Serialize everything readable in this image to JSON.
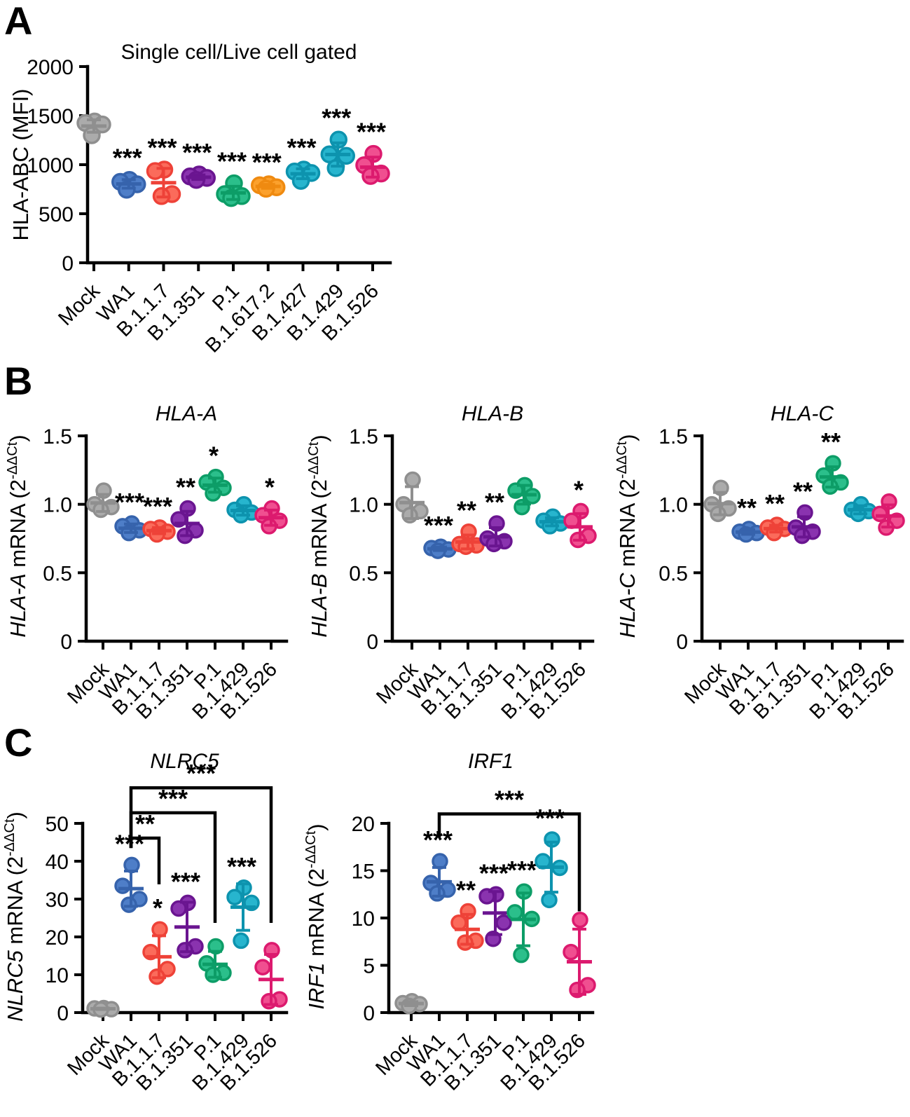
{
  "panels": [
    {
      "letter": "A"
    },
    {
      "letter": "B"
    },
    {
      "letter": "C"
    }
  ],
  "colors": {
    "Mock": {
      "fill": "#ABABAB",
      "stroke": "#8F8F8F"
    },
    "WA1": {
      "fill": "#4E7EC8",
      "stroke": "#3663AC"
    },
    "B.1.1.7": {
      "fill": "#FB6B5B",
      "stroke": "#EE4238"
    },
    "B.1.351": {
      "fill": "#8A33AF",
      "stroke": "#6A1590"
    },
    "P.1": {
      "fill": "#2BBF8B",
      "stroke": "#0D9D67"
    },
    "B.1.617.2": {
      "fill": "#FCA12D",
      "stroke": "#EF8A10"
    },
    "B.1.427": {
      "fill": "#27B5CE",
      "stroke": "#0D93AE"
    },
    "B.1.429": {
      "fill": "#27B5CE",
      "stroke": "#0D93AE"
    },
    "B.1.526": {
      "fill": "#F04F90",
      "stroke": "#DC1A6E"
    }
  },
  "chart_data": [
    {
      "id": "hla-abc",
      "panel": "A",
      "type": "scatter",
      "title": "Single cell/Live cell gated",
      "title_italic": false,
      "ylabel": {
        "italic": "",
        "plain": "HLA-ABC (MFI)",
        "sup": "",
        "close": ""
      },
      "ylim": [
        0,
        2000
      ],
      "yticks": [
        0,
        500,
        1000,
        1500,
        2000
      ],
      "ytick_labels": [
        "0",
        "500",
        "1000",
        "1500",
        "2000"
      ],
      "categories": [
        "Mock",
        "WA1",
        "B.1.1.7",
        "B.1.351",
        "P.1",
        "B.1.617.2",
        "B.1.427",
        "B.1.429",
        "B.1.526"
      ],
      "groups": [
        {
          "name": "Mock",
          "sig": "",
          "values": [
            1440,
            1425,
            1410,
            1300
          ]
        },
        {
          "name": "WA1",
          "sig": "***",
          "values": [
            845,
            825,
            800,
            745
          ]
        },
        {
          "name": "B.1.1.7",
          "sig": "***",
          "values": [
            950,
            935,
            700,
            680
          ]
        },
        {
          "name": "B.1.351",
          "sig": "***",
          "values": [
            900,
            880,
            865,
            845
          ]
        },
        {
          "name": "P.1",
          "sig": "***",
          "values": [
            810,
            700,
            680,
            660
          ]
        },
        {
          "name": "B.1.617.2",
          "sig": "***",
          "values": [
            800,
            790,
            770,
            755
          ]
        },
        {
          "name": "B.1.427",
          "sig": "***",
          "values": [
            950,
            930,
            915,
            835
          ]
        },
        {
          "name": "B.1.429",
          "sig": "***",
          "values": [
            1255,
            1105,
            1090,
            965
          ]
        },
        {
          "name": "B.1.526",
          "sig": "***",
          "values": [
            1110,
            995,
            910,
            885
          ]
        }
      ],
      "brackets": []
    },
    {
      "id": "hla-a",
      "panel": "B",
      "type": "scatter",
      "title": "HLA-A",
      "title_italic": true,
      "ylabel": {
        "italic": "HLA-A",
        "plain": " mRNA (2",
        "sup": "-ΔΔCt",
        "close": ")"
      },
      "ylim": [
        0,
        1.5
      ],
      "yticks": [
        0,
        0.5,
        1.0,
        1.5
      ],
      "ytick_labels": [
        "0",
        "0.5",
        "1.0",
        "1.5"
      ],
      "categories": [
        "Mock",
        "WA1",
        "B.1.1.7",
        "B.1.351",
        "P.1",
        "B.1.429",
        "B.1.526"
      ],
      "groups": [
        {
          "name": "Mock",
          "sig": "",
          "values": [
            1.1,
            1.0,
            0.98,
            0.96
          ]
        },
        {
          "name": "WA1",
          "sig": "***",
          "values": [
            0.86,
            0.84,
            0.81,
            0.79
          ]
        },
        {
          "name": "B.1.1.7",
          "sig": "***",
          "values": [
            0.83,
            0.82,
            0.8,
            0.78
          ]
        },
        {
          "name": "B.1.351",
          "sig": "**",
          "values": [
            0.97,
            0.89,
            0.81,
            0.77
          ]
        },
        {
          "name": "P.1",
          "sig": "*",
          "values": [
            1.2,
            1.16,
            1.12,
            1.08
          ]
        },
        {
          "name": "B.1.429",
          "sig": "",
          "values": [
            1.0,
            0.96,
            0.94,
            0.92
          ]
        },
        {
          "name": "B.1.526",
          "sig": "*",
          "values": [
            0.97,
            0.92,
            0.88,
            0.84
          ]
        }
      ],
      "brackets": []
    },
    {
      "id": "hla-b",
      "panel": "B",
      "type": "scatter",
      "title": "HLA-B",
      "title_italic": true,
      "ylabel": {
        "italic": "HLA-B",
        "plain": " mRNA (2",
        "sup": "-ΔΔCt",
        "close": ")"
      },
      "ylim": [
        0,
        1.5
      ],
      "yticks": [
        0,
        0.5,
        1.0,
        1.5
      ],
      "ytick_labels": [
        "0",
        "0.5",
        "1.0",
        "1.5"
      ],
      "categories": [
        "Mock",
        "WA1",
        "B.1.1.7",
        "B.1.351",
        "P.1",
        "B.1.429",
        "B.1.526"
      ],
      "groups": [
        {
          "name": "Mock",
          "sig": "",
          "values": [
            1.18,
            1.0,
            0.95,
            0.92
          ]
        },
        {
          "name": "WA1",
          "sig": "***",
          "values": [
            0.69,
            0.68,
            0.67,
            0.66
          ]
        },
        {
          "name": "B.1.1.7",
          "sig": "**",
          "values": [
            0.8,
            0.71,
            0.7,
            0.69
          ]
        },
        {
          "name": "B.1.351",
          "sig": "**",
          "values": [
            0.86,
            0.75,
            0.73,
            0.71
          ]
        },
        {
          "name": "P.1",
          "sig": "",
          "values": [
            1.14,
            1.1,
            1.06,
            0.98
          ]
        },
        {
          "name": "B.1.429",
          "sig": "",
          "values": [
            0.91,
            0.88,
            0.86,
            0.84
          ]
        },
        {
          "name": "B.1.526",
          "sig": "*",
          "values": [
            0.95,
            0.88,
            0.77,
            0.74
          ]
        }
      ],
      "brackets": []
    },
    {
      "id": "hla-c",
      "panel": "B",
      "type": "scatter",
      "title": "HLA-C",
      "title_italic": true,
      "ylabel": {
        "italic": "HLA-C",
        "plain": " mRNA (2",
        "sup": "-ΔΔCt",
        "close": ")"
      },
      "ylim": [
        0,
        1.5
      ],
      "yticks": [
        0,
        0.5,
        1.0,
        1.5
      ],
      "ytick_labels": [
        "0",
        "0.5",
        "1.0",
        "1.5"
      ],
      "categories": [
        "Mock",
        "WA1",
        "B.1.1.7",
        "B.1.351",
        "P.1",
        "B.1.429",
        "B.1.526"
      ],
      "groups": [
        {
          "name": "Mock",
          "sig": "",
          "values": [
            1.12,
            1.0,
            0.97,
            0.93
          ]
        },
        {
          "name": "WA1",
          "sig": "**",
          "values": [
            0.82,
            0.8,
            0.79,
            0.78
          ]
        },
        {
          "name": "B.1.1.7",
          "sig": "**",
          "values": [
            0.85,
            0.83,
            0.82,
            0.79
          ]
        },
        {
          "name": "B.1.351",
          "sig": "**",
          "values": [
            0.94,
            0.83,
            0.8,
            0.77
          ]
        },
        {
          "name": "P.1",
          "sig": "**",
          "values": [
            1.3,
            1.21,
            1.16,
            1.13
          ]
        },
        {
          "name": "B.1.429",
          "sig": "",
          "values": [
            1.0,
            0.96,
            0.95,
            0.93
          ]
        },
        {
          "name": "B.1.526",
          "sig": "",
          "values": [
            1.02,
            0.93,
            0.88,
            0.83
          ]
        }
      ],
      "brackets": []
    },
    {
      "id": "nlrc5",
      "panel": "C",
      "type": "scatter",
      "title": "NLRC5",
      "title_italic": true,
      "ylabel": {
        "italic": "NLRC5",
        "plain": " mRNA (2",
        "sup": "-ΔΔCt",
        "close": ")"
      },
      "ylim": [
        0,
        50
      ],
      "yticks": [
        0,
        10,
        20,
        30,
        40,
        50
      ],
      "ytick_labels": [
        "0",
        "10",
        "20",
        "30",
        "40",
        "50"
      ],
      "categories": [
        "Mock",
        "WA1",
        "B.1.1.7",
        "B.1.351",
        "P.1",
        "B.1.429",
        "B.1.526"
      ],
      "groups": [
        {
          "name": "Mock",
          "sig": "",
          "values": [
            1.2,
            1.1,
            0.9,
            0.8
          ]
        },
        {
          "name": "WA1",
          "sig": "***",
          "values": [
            39.0,
            33.5,
            30.0,
            28.5
          ]
        },
        {
          "name": "B.1.1.7",
          "sig": "*",
          "values": [
            22.0,
            16.0,
            11.5,
            9.5
          ]
        },
        {
          "name": "B.1.351",
          "sig": "***",
          "values": [
            29.0,
            27.5,
            17.5,
            16.5
          ]
        },
        {
          "name": "P.1",
          "sig": "",
          "values": [
            17.5,
            13.0,
            10.5,
            10.0
          ]
        },
        {
          "name": "B.1.429",
          "sig": "***",
          "values": [
            33.0,
            30.5,
            29.0,
            19.0
          ]
        },
        {
          "name": "B.1.526",
          "sig": "",
          "values": [
            16.5,
            12.0,
            3.5,
            3.0
          ]
        }
      ],
      "brackets": [
        {
          "from": "WA1",
          "to": "B.1.1.7",
          "label": "**",
          "bar": 46.1,
          "from_drop": 43.5,
          "to_drop": 33.9
        },
        {
          "from": "WA1",
          "to": "P.1",
          "label": "***",
          "bar": 52.8,
          "from_drop": 43.5,
          "to_drop": 23.7
        },
        {
          "from": "WA1",
          "to": "B.1.526",
          "label": "***",
          "bar": 59.4,
          "from_drop": 43.5,
          "to_drop": 23.7
        }
      ]
    },
    {
      "id": "irf1",
      "panel": "C",
      "type": "scatter",
      "title": "IRF1",
      "title_italic": true,
      "ylabel": {
        "italic": "IRF1",
        "plain": " mRNA (2",
        "sup": "-ΔΔCt",
        "close": ")"
      },
      "ylim": [
        0,
        20
      ],
      "yticks": [
        0,
        5,
        10,
        15,
        20
      ],
      "ytick_labels": [
        "0",
        "5",
        "10",
        "15",
        "20"
      ],
      "categories": [
        "Mock",
        "WA1",
        "B.1.1.7",
        "B.1.351",
        "P.1",
        "B.1.429",
        "B.1.526"
      ],
      "groups": [
        {
          "name": "Mock",
          "sig": "",
          "values": [
            1.2,
            1.0,
            0.9,
            0.7
          ]
        },
        {
          "name": "WA1",
          "sig": "***",
          "values": [
            16.0,
            13.7,
            13.0,
            12.6
          ]
        },
        {
          "name": "B.1.1.7",
          "sig": "**",
          "values": [
            10.7,
            9.5,
            7.6,
            7.4
          ]
        },
        {
          "name": "B.1.351",
          "sig": "***",
          "values": [
            12.5,
            12.3,
            9.5,
            7.8
          ]
        },
        {
          "name": "P.1",
          "sig": "***",
          "values": [
            12.8,
            10.6,
            9.9,
            6.1
          ]
        },
        {
          "name": "B.1.429",
          "sig": "***",
          "values": [
            18.3,
            16.0,
            15.3,
            11.9
          ]
        },
        {
          "name": "B.1.526",
          "sig": "",
          "values": [
            9.8,
            6.4,
            2.9,
            2.4
          ]
        }
      ],
      "brackets": [
        {
          "from": "WA1",
          "to": "B.1.526",
          "label": "***",
          "bar": 21.0,
          "from_drop": 18.5,
          "to_drop": 10.7
        }
      ]
    }
  ]
}
